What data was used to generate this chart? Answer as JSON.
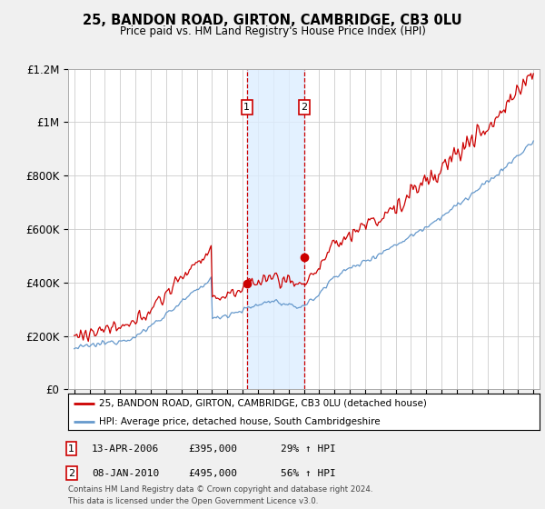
{
  "title": "25, BANDON ROAD, GIRTON, CAMBRIDGE, CB3 0LU",
  "subtitle": "Price paid vs. HM Land Registry's House Price Index (HPI)",
  "ylim": [
    0,
    1200000
  ],
  "yticks": [
    0,
    200000,
    400000,
    600000,
    800000,
    1000000,
    1200000
  ],
  "ytick_labels": [
    "£0",
    "£200K",
    "£400K",
    "£600K",
    "£800K",
    "£1M",
    "£1.2M"
  ],
  "transaction1_date": 2006.28,
  "transaction1_price": 395000,
  "transaction2_date": 2010.03,
  "transaction2_price": 495000,
  "hpi_color": "#6699cc",
  "price_color": "#cc0000",
  "shading_color": "#ddeeff",
  "background_color": "#f0f0f0",
  "plot_bg_color": "#ffffff",
  "footer_text": "Contains HM Land Registry data © Crown copyright and database right 2024.\nThis data is licensed under the Open Government Licence v3.0.",
  "legend1_label": "25, BANDON ROAD, GIRTON, CAMBRIDGE, CB3 0LU (detached house)",
  "legend2_label": "HPI: Average price, detached house, South Cambridgeshire"
}
